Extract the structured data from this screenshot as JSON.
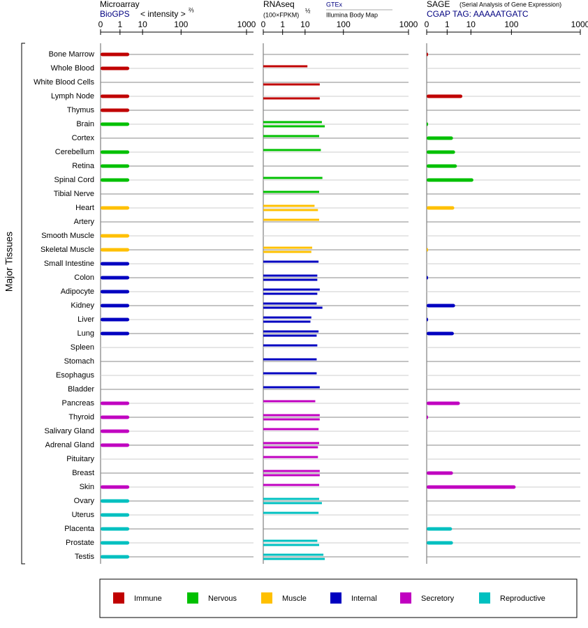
{
  "chart_data": {
    "type": "bar",
    "ylabel": "Major Tissues",
    "categories": [
      "Bone Marrow",
      "Whole Blood",
      "White Blood Cells",
      "Lymph Node",
      "Thymus",
      "Brain",
      "Cortex",
      "Cerebellum",
      "Retina",
      "Spinal Cord",
      "Tibial Nerve",
      "Heart",
      "Artery",
      "Smooth Muscle",
      "Skeletal Muscle",
      "Small Intestine",
      "Colon",
      "Adipocyte",
      "Kidney",
      "Liver",
      "Lung",
      "Spleen",
      "Stomach",
      "Esophagus",
      "Bladder",
      "Pancreas",
      "Thyroid",
      "Salivary Gland",
      "Adrenal Gland",
      "Pituitary",
      "Breast",
      "Skin",
      "Ovary",
      "Uterus",
      "Placenta",
      "Prostate",
      "Testis"
    ],
    "category_groups": [
      "Immune",
      "Immune",
      "Immune",
      "Immune",
      "Immune",
      "Nervous",
      "Nervous",
      "Nervous",
      "Nervous",
      "Nervous",
      "Nervous",
      "Muscle",
      "Muscle",
      "Muscle",
      "Muscle",
      "Internal",
      "Internal",
      "Internal",
      "Internal",
      "Internal",
      "Internal",
      "Internal",
      "Internal",
      "Internal",
      "Internal",
      "Secretory",
      "Secretory",
      "Secretory",
      "Secretory",
      "Secretory",
      "Secretory",
      "Secretory",
      "Reproductive",
      "Reproductive",
      "Reproductive",
      "Reproductive",
      "Reproductive"
    ],
    "legend": [
      {
        "name": "Immune",
        "color": "#c00000"
      },
      {
        "name": "Nervous",
        "color": "#00c000"
      },
      {
        "name": "Muscle",
        "color": "#ffc000"
      },
      {
        "name": "Internal",
        "color": "#0000c0"
      },
      {
        "name": "Secretory",
        "color": "#c000c0"
      },
      {
        "name": "Reproductive",
        "color": "#00c0c0"
      }
    ],
    "panels": [
      {
        "title": "Microarray",
        "subtitle": "BioGPS",
        "scale_label": "< intensity >",
        "scale_power": "⅔",
        "xlim": [
          0,
          1000
        ],
        "xticks": [
          0,
          1,
          10,
          100,
          1000
        ],
        "series": [
          {
            "values": [
              3,
              3,
              null,
              3,
              3,
              3,
              null,
              3,
              3,
              3,
              null,
              3,
              null,
              3,
              3,
              3,
              3,
              3,
              3,
              3,
              3,
              null,
              null,
              null,
              null,
              3,
              3,
              3,
              3,
              null,
              null,
              3,
              3,
              3,
              3,
              3,
              3
            ]
          }
        ]
      },
      {
        "title": "RNAseq",
        "scale_label": "(100×FPKM)",
        "scale_power": "½",
        "xlim": [
          0,
          1000
        ],
        "xticks": [
          0,
          1,
          10,
          100,
          1000
        ],
        "series": [
          {
            "name": "GTEx",
            "values": [
              null,
              12,
              null,
              null,
              null,
              32,
              27,
              30,
              null,
              33,
              27,
              20,
              27,
              null,
              17,
              26,
              24,
              28,
              23,
              16,
              26,
              24,
              23,
              23,
              28,
              21,
              28,
              26,
              27,
              25,
              28,
              27,
              27,
              26,
              null,
              24,
              35
            ]
          },
          {
            "name": "Illumina Body Map",
            "values": [
              null,
              null,
              28,
              28,
              null,
              38,
              null,
              null,
              null,
              null,
              null,
              25,
              null,
              null,
              16,
              null,
              24,
              24,
              33,
              15,
              23,
              null,
              null,
              null,
              null,
              null,
              28,
              null,
              25,
              null,
              28,
              null,
              32,
              null,
              null,
              27,
              38
            ]
          }
        ]
      },
      {
        "title": "SAGE",
        "note": "(Serial Analysis of Gene Expression)",
        "subtitle": "CGAP TAG: AAAAATGATC",
        "xlim": [
          0,
          1000
        ],
        "xticks": [
          0,
          1,
          10,
          100,
          1000
        ],
        "series": [
          {
            "values": [
              0.01,
              null,
              null,
              5,
              null,
              0.01,
              2,
              2.5,
              3,
              12,
              null,
              2.3,
              null,
              null,
              0.01,
              null,
              0.01,
              null,
              2.5,
              0.01,
              2.2,
              null,
              null,
              null,
              null,
              4,
              0.01,
              null,
              null,
              null,
              2,
              120,
              null,
              null,
              1.8,
              2,
              null
            ]
          }
        ]
      }
    ]
  }
}
